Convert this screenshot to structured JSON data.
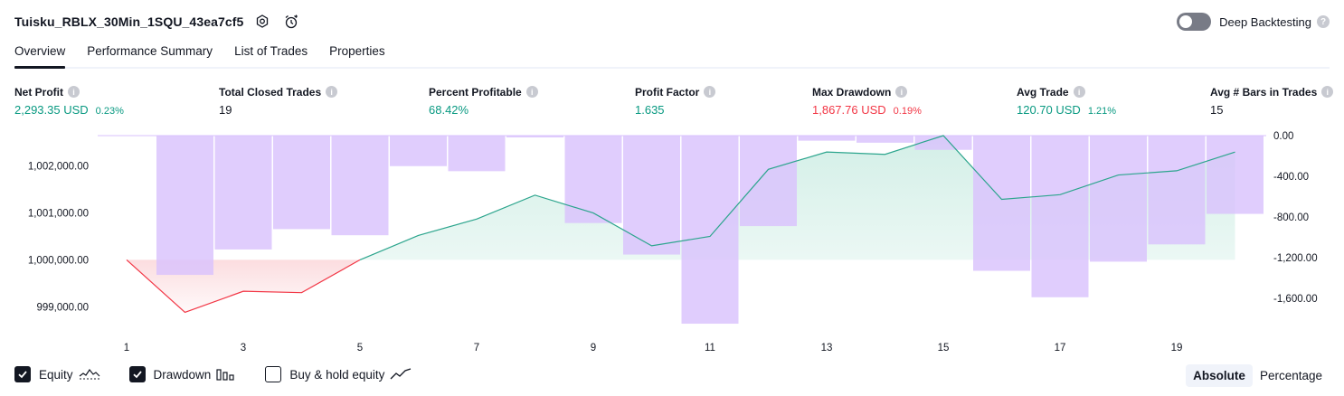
{
  "header": {
    "title": "Tuisku_RBLX_30Min_1SQU_43ea7cf5",
    "deep_backtesting_label": "Deep Backtesting"
  },
  "tabs": [
    {
      "label": "Overview",
      "active": true
    },
    {
      "label": "Performance Summary",
      "active": false
    },
    {
      "label": "List of Trades",
      "active": false
    },
    {
      "label": "Properties",
      "active": false
    }
  ],
  "metrics": [
    {
      "label": "Net Profit",
      "value": "2,293.35 USD",
      "pct": "0.23%",
      "color": "green"
    },
    {
      "label": "Total Closed Trades",
      "value": "19",
      "pct": "",
      "color": "dark"
    },
    {
      "label": "Percent Profitable",
      "value": "68.42%",
      "pct": "",
      "color": "green"
    },
    {
      "label": "Profit Factor",
      "value": "1.635",
      "pct": "",
      "color": "green"
    },
    {
      "label": "Max Drawdown",
      "value": "1,867.76 USD",
      "pct": "0.19%",
      "color": "red"
    },
    {
      "label": "Avg Trade",
      "value": "120.70 USD",
      "pct": "1.21%",
      "color": "green"
    },
    {
      "label": "Avg # Bars in Trades",
      "value": "15",
      "pct": "",
      "color": "dark"
    }
  ],
  "chart_data": {
    "type": "area",
    "x_ticks": [
      1,
      3,
      5,
      7,
      9,
      11,
      13,
      15,
      17,
      19
    ],
    "equity_baseline": 1000000,
    "left_axis": {
      "ticks": [
        "1,002,000.00",
        "1,001,000.00",
        "1,000,000.00",
        "999,000.00"
      ],
      "values": [
        1002000,
        1001000,
        1000000,
        999000
      ],
      "range": [
        998600,
        1002650
      ]
    },
    "right_axis": {
      "ticks": [
        "0.00",
        "-400.00",
        "-800.00",
        "-1,200.00",
        "-1,600.00"
      ],
      "values": [
        0,
        -400,
        -800,
        -1200,
        -1600
      ],
      "range": [
        -1867.76,
        0
      ]
    },
    "series": [
      {
        "name": "Equity",
        "x": [
          1,
          2,
          3,
          4,
          5,
          6,
          7,
          8,
          9,
          10,
          11,
          12,
          13,
          14,
          15,
          16,
          17,
          18,
          19,
          20
        ],
        "values": [
          1000000,
          998880,
          999330,
          999300,
          1000000,
          1000520,
          1000870,
          1001380,
          1001000,
          1000300,
          1000500,
          1001930,
          1002300,
          1002250,
          1002650,
          1001290,
          1001390,
          1001810,
          1001900,
          1002300
        ]
      },
      {
        "name": "Drawdown",
        "x": [
          1,
          2,
          3,
          4,
          5,
          6,
          7,
          8,
          9,
          10,
          11,
          12,
          13,
          14,
          15,
          16,
          17,
          18,
          19,
          20
        ],
        "values": [
          0,
          -1370,
          -1120,
          -920,
          -980,
          -300,
          -350,
          -15,
          -860,
          -1170,
          -1850,
          -890,
          -50,
          -70,
          -140,
          -1330,
          -1590,
          -1240,
          -1070,
          -770
        ]
      }
    ]
  },
  "legend": [
    {
      "label": "Equity",
      "checked": true,
      "icon": "equity-line-icon"
    },
    {
      "label": "Drawdown",
      "checked": true,
      "icon": "drawdown-bars-icon"
    },
    {
      "label": "Buy & hold equity",
      "checked": false,
      "icon": "buy-hold-line-icon"
    }
  ],
  "view_switcher": {
    "absolute_label": "Absolute",
    "percentage_label": "Percentage",
    "active": "absolute"
  },
  "colors": {
    "equity_line": "#2ca58d",
    "equity_fill": "#d3efe7",
    "loss_line": "#f23645",
    "loss_fill": "#fbd9dc",
    "drawdown_bar": "#d9c2fc"
  }
}
